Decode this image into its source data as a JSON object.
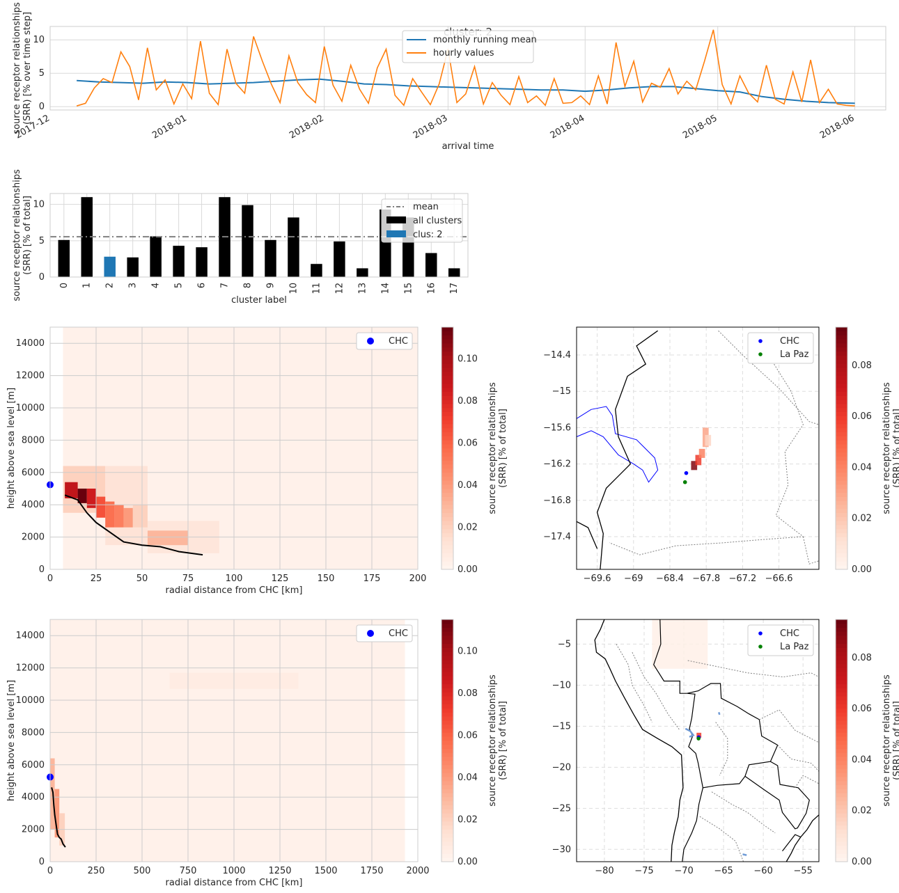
{
  "chart_data": [
    {
      "type": "line",
      "title": "cluster: 2",
      "xlabel": "arrival time",
      "ylabel": "source receptor relationships\n(SRR) [% over time step]",
      "x_ticks": [
        "2017-12",
        "2018-01",
        "2018-02",
        "2018-03",
        "2018-04",
        "2018-05",
        "2018-06"
      ],
      "y_ticks": [
        0,
        5,
        10
      ],
      "ylim": [
        -0.5,
        12
      ],
      "xlim": [
        "2017-12-01",
        "2018-06-08"
      ],
      "grid": true,
      "legend_position": "top-center",
      "series": [
        {
          "name": "monthly running mean",
          "color": "#1f77b4",
          "x": [
            "2017-12-07",
            "2017-12-12",
            "2017-12-17",
            "2017-12-22",
            "2017-12-27",
            "2018-01-01",
            "2018-01-06",
            "2018-01-11",
            "2018-01-16",
            "2018-01-21",
            "2018-01-26",
            "2018-01-31",
            "2018-02-05",
            "2018-02-10",
            "2018-02-15",
            "2018-02-20",
            "2018-02-25",
            "2018-03-02",
            "2018-03-07",
            "2018-03-12",
            "2018-03-17",
            "2018-03-22",
            "2018-03-27",
            "2018-04-01",
            "2018-04-06",
            "2018-04-11",
            "2018-04-16",
            "2018-04-21",
            "2018-04-26",
            "2018-05-01",
            "2018-05-06",
            "2018-05-11",
            "2018-05-16",
            "2018-05-21",
            "2018-05-26",
            "2018-06-01"
          ],
          "values": [
            3.9,
            3.7,
            3.6,
            3.5,
            3.7,
            3.6,
            3.4,
            3.5,
            3.6,
            3.8,
            4.0,
            4.1,
            3.8,
            3.4,
            3.3,
            3.1,
            3.0,
            2.9,
            2.8,
            2.7,
            2.6,
            2.5,
            2.5,
            2.3,
            2.5,
            2.8,
            3.0,
            3.0,
            2.7,
            2.4,
            2.2,
            1.5,
            1.1,
            0.8,
            0.6,
            0.5
          ]
        },
        {
          "name": "hourly values",
          "color": "#ff7f0e",
          "x": [
            "2017-12-07",
            "2017-12-09",
            "2017-12-11",
            "2017-12-13",
            "2017-12-15",
            "2017-12-17",
            "2017-12-19",
            "2017-12-21",
            "2017-12-23",
            "2017-12-25",
            "2017-12-27",
            "2017-12-29",
            "2017-12-31",
            "2018-01-02",
            "2018-01-04",
            "2018-01-06",
            "2018-01-08",
            "2018-01-10",
            "2018-01-12",
            "2018-01-14",
            "2018-01-16",
            "2018-01-18",
            "2018-01-20",
            "2018-01-22",
            "2018-01-24",
            "2018-01-26",
            "2018-01-28",
            "2018-01-30",
            "2018-02-01",
            "2018-02-03",
            "2018-02-05",
            "2018-02-07",
            "2018-02-09",
            "2018-02-11",
            "2018-02-13",
            "2018-02-15",
            "2018-02-17",
            "2018-02-19",
            "2018-02-21",
            "2018-02-23",
            "2018-02-25",
            "2018-02-27",
            "2018-03-01",
            "2018-03-03",
            "2018-03-05",
            "2018-03-07",
            "2018-03-09",
            "2018-03-11",
            "2018-03-13",
            "2018-03-15",
            "2018-03-17",
            "2018-03-19",
            "2018-03-21",
            "2018-03-23",
            "2018-03-25",
            "2018-03-27",
            "2018-03-29",
            "2018-03-31",
            "2018-04-02",
            "2018-04-04",
            "2018-04-06",
            "2018-04-08",
            "2018-04-10",
            "2018-04-12",
            "2018-04-14",
            "2018-04-16",
            "2018-04-18",
            "2018-04-20",
            "2018-04-22",
            "2018-04-24",
            "2018-04-26",
            "2018-04-28",
            "2018-04-30",
            "2018-05-02",
            "2018-05-04",
            "2018-05-06",
            "2018-05-08",
            "2018-05-10",
            "2018-05-12",
            "2018-05-14",
            "2018-05-16",
            "2018-05-18",
            "2018-05-20",
            "2018-05-22",
            "2018-05-24",
            "2018-05-26",
            "2018-05-28",
            "2018-05-30",
            "2018-06-01"
          ],
          "values": [
            0.1,
            0.5,
            2.8,
            4.2,
            3.6,
            8.2,
            6.0,
            1.0,
            8.8,
            2.5,
            4.0,
            0.4,
            3.4,
            1.2,
            9.8,
            2.0,
            0.3,
            8.6,
            3.5,
            2.0,
            10.5,
            6.8,
            3.4,
            0.6,
            7.6,
            3.6,
            1.8,
            0.6,
            9.0,
            3.2,
            0.8,
            6.2,
            2.6,
            0.5,
            5.8,
            8.6,
            1.7,
            0.2,
            4.2,
            2.2,
            0.3,
            3.4,
            8.6,
            0.6,
            1.9,
            6.0,
            0.4,
            3.6,
            1.7,
            0.3,
            4.5,
            0.6,
            1.6,
            0.2,
            4.2,
            0.5,
            0.6,
            1.6,
            0.3,
            4.6,
            0.4,
            9.6,
            3.0,
            6.8,
            0.7,
            3.5,
            2.9,
            5.7,
            1.9,
            3.8,
            2.5,
            6.8,
            11.5,
            3.3,
            0.4,
            4.6,
            2.0,
            0.7,
            6.2,
            1.1,
            0.4,
            5.2,
            0.7,
            7.0,
            0.6,
            2.6,
            0.4,
            0.2,
            0.1
          ]
        }
      ]
    },
    {
      "type": "bar",
      "xlabel": "cluster label",
      "ylabel": "source receptor relationships\n(SRR) [% of total]",
      "categories": [
        "0",
        "1",
        "2",
        "3",
        "4",
        "5",
        "6",
        "7",
        "8",
        "9",
        "10",
        "11",
        "12",
        "13",
        "14",
        "15",
        "16",
        "17"
      ],
      "values": [
        5.1,
        11.0,
        2.8,
        2.7,
        5.6,
        4.3,
        4.1,
        11.0,
        9.9,
        5.1,
        8.2,
        1.8,
        4.9,
        1.2,
        9.3,
        8.2,
        3.3,
        1.2
      ],
      "highlight_category": "2",
      "mean": 5.55,
      "y_ticks": [
        0,
        5,
        10
      ],
      "ylim": [
        0,
        11.5
      ],
      "grid": true,
      "legend_position": "top-right",
      "legend": [
        "mean",
        "all clusters",
        "clus: 2"
      ],
      "colors": {
        "all": "#000000",
        "highlight": "#1f77b4",
        "mean": "#808080"
      }
    },
    {
      "type": "heatmap",
      "xlabel": "radial distance from CHC [km]",
      "ylabel": "height above sea level [m]",
      "xlim": [
        0,
        200
      ],
      "ylim": [
        0,
        15000
      ],
      "x_ticks": [
        0,
        25,
        50,
        75,
        100,
        125,
        150,
        175,
        200
      ],
      "y_ticks": [
        0,
        2000,
        4000,
        6000,
        8000,
        10000,
        12000,
        14000
      ],
      "background": {
        "x": [
          7,
          200
        ],
        "y": [
          0,
          15000
        ],
        "value": 0.003
      },
      "cells": [
        {
          "x": [
            7,
            30
          ],
          "y": [
            3500,
            6400
          ],
          "value": 0.02
        },
        {
          "x": [
            30,
            53
          ],
          "y": [
            1500,
            6400
          ],
          "value": 0.012
        },
        {
          "x": [
            53,
            92
          ],
          "y": [
            1000,
            3000
          ],
          "value": 0.01
        },
        {
          "x": [
            8,
            15
          ],
          "y": [
            4400,
            5400
          ],
          "value": 0.09
        },
        {
          "x": [
            15,
            20
          ],
          "y": [
            4100,
            5000
          ],
          "value": 0.115
        },
        {
          "x": [
            20,
            25
          ],
          "y": [
            3800,
            5000
          ],
          "value": 0.085
        },
        {
          "x": [
            25,
            30
          ],
          "y": [
            3200,
            4500
          ],
          "value": 0.065
        },
        {
          "x": [
            30,
            35
          ],
          "y": [
            2600,
            4200
          ],
          "value": 0.055
        },
        {
          "x": [
            35,
            40
          ],
          "y": [
            2600,
            4000
          ],
          "value": 0.05
        },
        {
          "x": [
            40,
            45
          ],
          "y": [
            2600,
            3800
          ],
          "value": 0.04
        },
        {
          "x": [
            45,
            53
          ],
          "y": [
            2600,
            4000
          ],
          "value": 0.02
        },
        {
          "x": [
            53,
            75
          ],
          "y": [
            1500,
            2400
          ],
          "value": 0.03
        }
      ],
      "profile": {
        "x": [
          8,
          15,
          20,
          25,
          30,
          40,
          50,
          60,
          70,
          83
        ],
        "y": [
          4600,
          4300,
          3500,
          2900,
          2500,
          1700,
          1500,
          1400,
          1100,
          900
        ]
      },
      "marker": {
        "label": "CHC",
        "x": 0,
        "y": 5240,
        "color": "#0000ff"
      },
      "legend": [
        "CHC"
      ],
      "legend_position": "top-right",
      "colorbar": {
        "label": "source receptor relationships\n(SRR) [% of total]",
        "ticks": [
          0.0,
          0.02,
          0.04,
          0.06,
          0.08,
          0.1
        ],
        "max": 0.115
      }
    },
    {
      "type": "heatmap",
      "xlabel": "radial distance from CHC [km]",
      "ylabel": "height above sea level [m]",
      "xlim": [
        0,
        2000
      ],
      "ylim": [
        0,
        15000
      ],
      "x_ticks": [
        0,
        250,
        500,
        750,
        1000,
        1250,
        1500,
        1750,
        2000
      ],
      "y_ticks": [
        0,
        2000,
        4000,
        6000,
        8000,
        10000,
        12000,
        14000
      ],
      "background": {
        "x": [
          0,
          1930
        ],
        "y": [
          0,
          15000
        ],
        "value": 0.003
      },
      "cells": [
        {
          "x": [
            0,
            25
          ],
          "y": [
            2000,
            6400
          ],
          "value": 0.03
        },
        {
          "x": [
            25,
            50
          ],
          "y": [
            1500,
            4500
          ],
          "value": 0.04
        },
        {
          "x": [
            50,
            80
          ],
          "y": [
            1000,
            3000
          ],
          "value": 0.02
        },
        {
          "x": [
            650,
            1350
          ],
          "y": [
            10700,
            11700
          ],
          "value": 0.006
        }
      ],
      "profile": {
        "x": [
          8,
          15,
          20,
          25,
          30,
          40,
          50,
          60,
          70,
          83
        ],
        "y": [
          4600,
          4300,
          3500,
          2900,
          2500,
          1700,
          1500,
          1400,
          1100,
          900
        ]
      },
      "marker": {
        "label": "CHC",
        "x": 0,
        "y": 5240,
        "color": "#0000ff"
      },
      "legend": [
        "CHC"
      ],
      "legend_position": "top-right",
      "colorbar": {
        "label": "source receptor relationships\n(SRR) [% of total]",
        "ticks": [
          0.0,
          0.02,
          0.04,
          0.06,
          0.08,
          0.1
        ],
        "max": 0.115
      }
    },
    {
      "type": "scatter",
      "map": true,
      "xlim": [
        -69.94,
        -65.94
      ],
      "ylim": [
        -17.94,
        -13.94
      ],
      "x_ticks": [
        -69.6,
        -69.0,
        -68.4,
        -67.8,
        -67.2,
        -66.6
      ],
      "y_ticks": [
        -14.4,
        -15.0,
        -15.6,
        -16.2,
        -16.8,
        -17.4
      ],
      "points": [
        {
          "label": "CHC",
          "lon": -68.13,
          "lat": -16.35,
          "color": "#0000ff"
        },
        {
          "label": "La Paz",
          "lon": -68.15,
          "lat": -16.5,
          "color": "#008000"
        }
      ],
      "legend": [
        "CHC",
        "La Paz"
      ],
      "legend_position": "top-right",
      "plume": [
        {
          "lon": [
            -68.05,
            -67.95
          ],
          "lat": [
            -16.3,
            -16.15
          ],
          "value": 0.09
        },
        {
          "lon": [
            -67.98,
            -67.88
          ],
          "lat": [
            -16.22,
            -16.05
          ],
          "value": 0.06
        },
        {
          "lon": [
            -67.92,
            -67.82
          ],
          "lat": [
            -16.1,
            -15.95
          ],
          "value": 0.04
        },
        {
          "lon": [
            -67.86,
            -67.76
          ],
          "lat": [
            -15.92,
            -15.6
          ],
          "value": 0.03
        },
        {
          "lon": [
            -67.82,
            -67.72
          ],
          "lat": [
            -15.9,
            -15.72
          ],
          "value": 0.015
        }
      ],
      "colorbar": {
        "label": "source receptor relationships\n(SRR) [% of total]",
        "ticks": [
          0.0,
          0.02,
          0.04,
          0.06,
          0.08
        ],
        "max": 0.095
      }
    },
    {
      "type": "scatter",
      "map": true,
      "xlim": [
        -83.5,
        -53
      ],
      "ylim": [
        -31.5,
        -2
      ],
      "x_ticks": [
        -80,
        -75,
        -70,
        -65,
        -60,
        -55
      ],
      "y_ticks": [
        -5,
        -10,
        -15,
        -20,
        -25,
        -30
      ],
      "points": [
        {
          "label": "CHC",
          "lon": -68.13,
          "lat": -16.35,
          "color": "#0000ff"
        },
        {
          "label": "La Paz",
          "lon": -68.15,
          "lat": -16.5,
          "color": "#008000"
        }
      ],
      "legend": [
        "CHC",
        "La Paz"
      ],
      "legend_position": "top-right",
      "plume": [
        {
          "lon": [
            -74,
            -67
          ],
          "lat": [
            -8,
            -2
          ],
          "value": 0.003
        },
        {
          "lon": [
            -68.4,
            -67.8
          ],
          "lat": [
            -16.4,
            -15.8
          ],
          "value": 0.06
        }
      ],
      "colorbar": {
        "label": "source receptor relationships\n(SRR) [% of total]",
        "ticks": [
          0.0,
          0.02,
          0.04,
          0.06,
          0.08
        ],
        "max": 0.095
      }
    }
  ]
}
